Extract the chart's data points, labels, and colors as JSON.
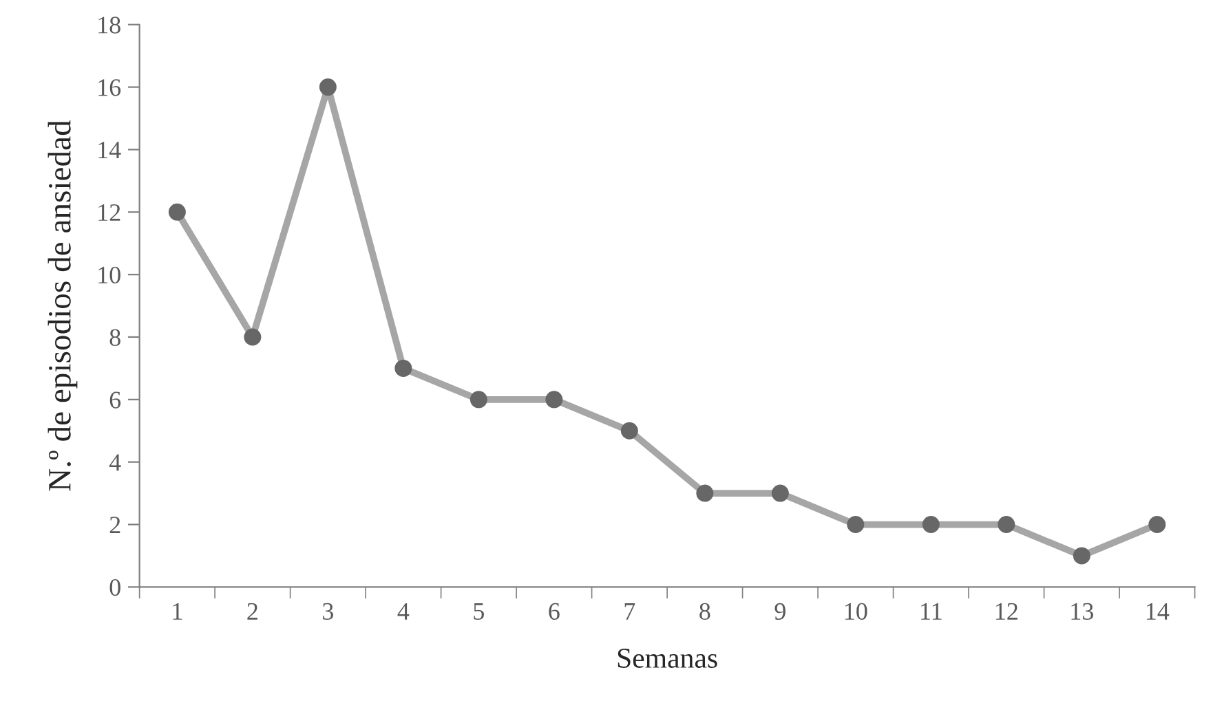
{
  "chart_data": {
    "type": "line",
    "xlabel": "Semanas",
    "ylabel": "N.º de episodios de ansiedad",
    "categories": [
      "1",
      "2",
      "3",
      "4",
      "5",
      "6",
      "7",
      "8",
      "9",
      "10",
      "11",
      "12",
      "13",
      "14"
    ],
    "series": [
      {
        "color": "#a6a6a6",
        "values": [
          12,
          8,
          16,
          7,
          6,
          6,
          5,
          3,
          3,
          2,
          2,
          2,
          1,
          2
        ]
      }
    ],
    "ylim": [
      0,
      18
    ],
    "yticks": [
      0,
      2,
      4,
      6,
      8,
      10,
      12,
      14,
      16,
      18
    ],
    "grid": false,
    "legend": false,
    "marker": "circle",
    "line_style": "solid"
  }
}
